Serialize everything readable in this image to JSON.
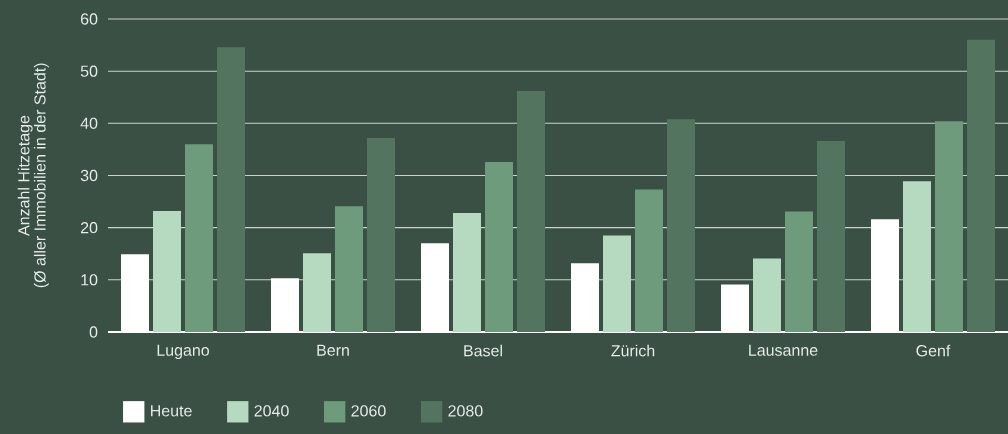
{
  "chart_data": {
    "type": "bar",
    "ylabel": "Anzahl Hitzetage",
    "annotations": [
      "(Ø aller Immobilien in der Stadt)"
    ],
    "categories": [
      "Lugano",
      "Bern",
      "Basel",
      "Zürich",
      "Lausanne",
      "Genf"
    ],
    "series": [
      {
        "name": "Heute",
        "color": "#ffffff",
        "values": [
          14.9,
          10.3,
          17.0,
          13.2,
          9.1,
          21.6
        ]
      },
      {
        "name": "2040",
        "color": "#b5dac0",
        "values": [
          23.2,
          15.1,
          22.8,
          18.5,
          14.1,
          28.9
        ]
      },
      {
        "name": "2060",
        "color": "#6e9b7c",
        "values": [
          36.0,
          24.1,
          32.6,
          27.3,
          23.1,
          40.4
        ]
      },
      {
        "name": "2080",
        "color": "#537560",
        "values": [
          54.6,
          37.2,
          46.2,
          40.8,
          36.6,
          56.0
        ]
      }
    ],
    "ylim": [
      0,
      60
    ],
    "yticks": [
      0,
      10,
      20,
      30,
      40,
      50,
      60
    ],
    "grid": "y",
    "legend": "bottom left"
  }
}
